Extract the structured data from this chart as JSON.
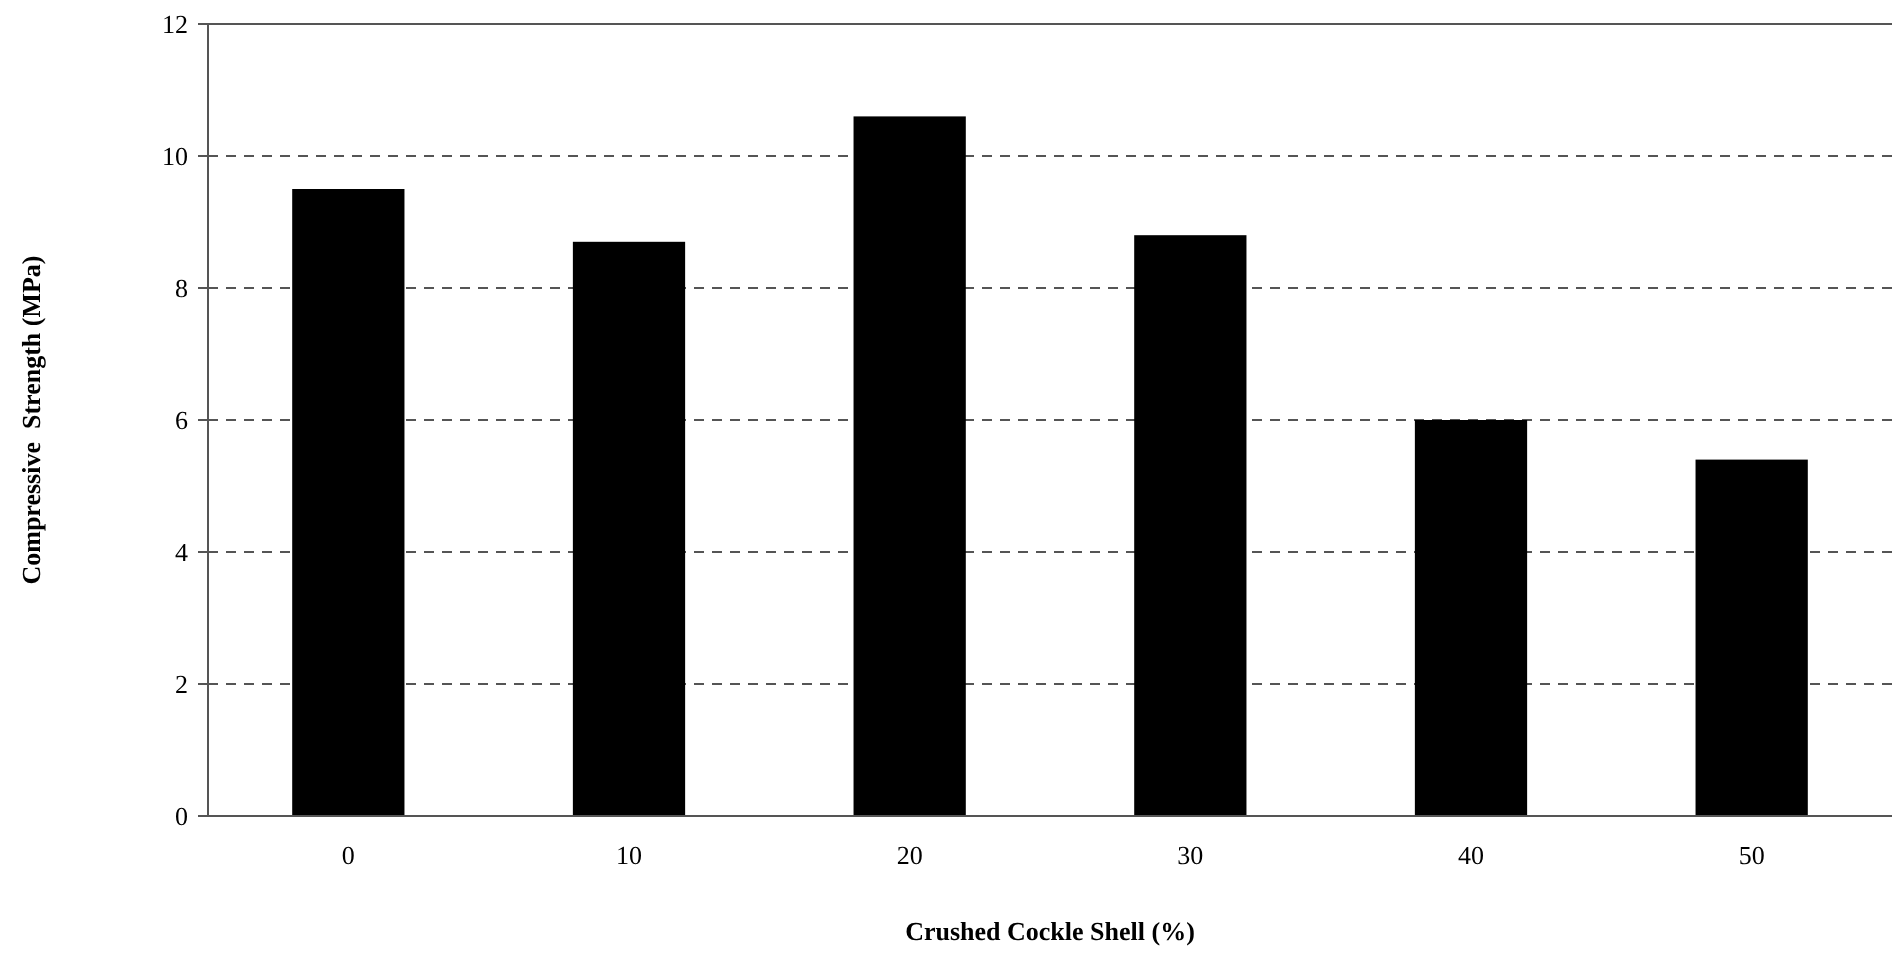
{
  "chart_data": {
    "type": "bar",
    "xlabel": "Crushed Cockle Shell (%)",
    "ylabel": "Compressive  Strength (MPa)",
    "categories": [
      "0",
      "10",
      "20",
      "30",
      "40",
      "50"
    ],
    "values": [
      9.5,
      8.7,
      10.6,
      8.8,
      6.0,
      5.4
    ],
    "color": "#000000",
    "ylim": [
      0,
      12
    ],
    "yticks": [
      0,
      2,
      4,
      6,
      8,
      10,
      12
    ],
    "grid": "y"
  }
}
